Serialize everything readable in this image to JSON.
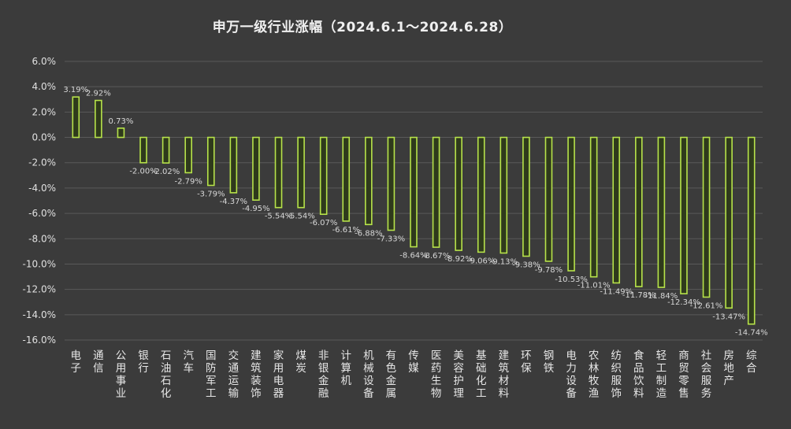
{
  "chart_data": {
    "type": "bar",
    "title": "申万一级行业涨幅（2024.6.1～2024.6.28）",
    "xlabel": "",
    "ylabel": "",
    "ylim": [
      -16,
      6
    ],
    "yticks": [
      "6.0%",
      "4.0%",
      "2.0%",
      "0.0%",
      "-2.0%",
      "-4.0%",
      "-6.0%",
      "-8.0%",
      "-10.0%",
      "-12.0%",
      "-14.0%",
      "-16.0%"
    ],
    "grid": true,
    "legend": "none",
    "colors": {
      "bar_fill": "#2f3a1c",
      "bar_stroke": "#b7e34a",
      "grid": "#5a5a5a",
      "background": "#3b3b3b"
    },
    "categories": [
      "电子",
      "通信",
      "公用事业",
      "银行",
      "石油石化",
      "汽车",
      "国防军工",
      "交通运输",
      "建筑装饰",
      "家用电器",
      "煤炭",
      "非银金融",
      "计算机",
      "机械设备",
      "有色金属",
      "传媒",
      "医药生物",
      "美容护理",
      "基础化工",
      "建筑材料",
      "环保",
      "钢铁",
      "电力设备",
      "农林牧渔",
      "纺织服饰",
      "食品饮料",
      "轻工制造",
      "商贸零售",
      "社会服务",
      "房地产",
      "综合"
    ],
    "values": [
      3.19,
      2.92,
      0.73,
      -2.0,
      -2.02,
      -2.79,
      -3.79,
      -4.37,
      -4.95,
      -5.54,
      -5.54,
      -6.07,
      -6.61,
      -6.88,
      -7.33,
      -8.64,
      -8.67,
      -8.92,
      -9.06,
      -9.13,
      -9.38,
      -9.78,
      -10.53,
      -11.01,
      -11.49,
      -11.78,
      -11.84,
      -12.34,
      -12.61,
      -13.47,
      -14.74
    ],
    "data_labels": [
      "3.19%",
      "2.92%",
      "0.73%",
      "-2.00%",
      "-2.02%",
      "-2.79%",
      "-3.79%",
      "-4.37%",
      "-4.95%",
      "-5.54%",
      "-5.54%",
      "-6.07%",
      "-6.61%",
      "-6.88%",
      "-7.33%",
      "-8.64%",
      "-8.67%",
      "-8.92%",
      "-9.06%",
      "-9.13%",
      "-9.38%",
      "-9.78%",
      "-10.53%",
      "-11.01%",
      "-11.49%",
      "-11.78%",
      "-11.84%",
      "-12.34%",
      "-12.61%",
      "-13.47%",
      "-14.74%"
    ]
  }
}
